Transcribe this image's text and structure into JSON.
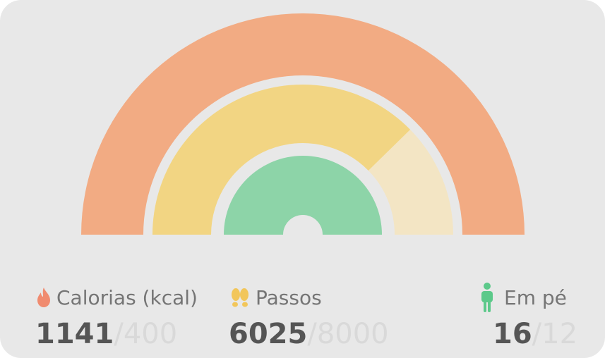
{
  "rings": [
    {
      "id": "calories",
      "progress": 1.0,
      "color": "#f2ab83",
      "track": "#f2ab83"
    },
    {
      "id": "steps",
      "progress": 0.7531,
      "color": "#f2d583",
      "track": "#f3e5c4"
    },
    {
      "id": "stand",
      "progress": 1.0,
      "color": "#8dd4a8",
      "track": "#8dd4a8"
    }
  ],
  "stats": {
    "calories": {
      "icon": "flame-icon",
      "label": "Calorias (kcal)",
      "value": "1141",
      "separator": "/",
      "goal": "400",
      "color": "#f08b6f"
    },
    "steps": {
      "icon": "footprints-icon",
      "label": "Passos",
      "value": "6025",
      "separator": "/",
      "goal": "8000",
      "color": "#f2c65a"
    },
    "stand": {
      "icon": "standing-person-icon",
      "label": "Em pé",
      "value": "16",
      "separator": "/",
      "goal": "12",
      "color": "#5cc98a"
    }
  }
}
